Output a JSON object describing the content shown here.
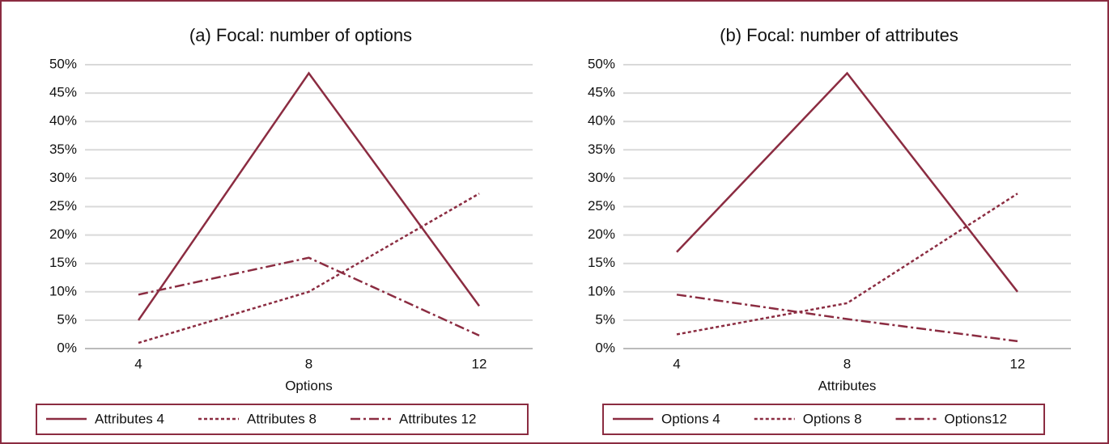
{
  "chart_data": [
    {
      "type": "line",
      "title": "(a) Focal: number of options",
      "x_label": "Options",
      "categories": [
        "4",
        "8",
        "12"
      ],
      "ylim": [
        0,
        50
      ],
      "yticks": [
        {
          "value": 0,
          "label": "0%"
        },
        {
          "value": 5,
          "label": "5%"
        },
        {
          "value": 10,
          "label": "10%"
        },
        {
          "value": 15,
          "label": "15%"
        },
        {
          "value": 20,
          "label": "20%"
        },
        {
          "value": 25,
          "label": "25%"
        },
        {
          "value": 30,
          "label": "30%"
        },
        {
          "value": 35,
          "label": "35%"
        },
        {
          "value": 40,
          "label": "40%"
        },
        {
          "value": 45,
          "label": "45%"
        },
        {
          "value": 50,
          "label": "50%"
        }
      ],
      "grid": true,
      "legend": "bottom",
      "series": [
        {
          "name": "Attributes 4",
          "color": "#8b2c41",
          "dash": "solid",
          "values": [
            5,
            48.5,
            7.5
          ]
        },
        {
          "name": "Attributes 8",
          "color": "#8b2c41",
          "dash": "dashed",
          "values": [
            1,
            10,
            27.3
          ]
        },
        {
          "name": "Attributes 12",
          "color": "#8b2c41",
          "dash": "dashdot",
          "values": [
            9.5,
            16,
            2.3
          ]
        }
      ]
    },
    {
      "type": "line",
      "title": "(b) Focal: number of attributes",
      "x_label": "Attributes",
      "categories": [
        "4",
        "8",
        "12"
      ],
      "ylim": [
        0,
        50
      ],
      "yticks": [
        {
          "value": 0,
          "label": "0%"
        },
        {
          "value": 5,
          "label": "5%"
        },
        {
          "value": 10,
          "label": "10%"
        },
        {
          "value": 15,
          "label": "15%"
        },
        {
          "value": 20,
          "label": "20%"
        },
        {
          "value": 25,
          "label": "25%"
        },
        {
          "value": 30,
          "label": "30%"
        },
        {
          "value": 35,
          "label": "35%"
        },
        {
          "value": 40,
          "label": "40%"
        },
        {
          "value": 45,
          "label": "45%"
        },
        {
          "value": 50,
          "label": "50%"
        }
      ],
      "grid": true,
      "legend": "bottom",
      "series": [
        {
          "name": "Options 4",
          "color": "#8b2c41",
          "dash": "solid",
          "values": [
            17,
            48.5,
            10
          ]
        },
        {
          "name": "Options 8",
          "color": "#8b2c41",
          "dash": "dashed",
          "values": [
            2.5,
            8,
            27.3
          ]
        },
        {
          "name": "Options12",
          "color": "#8b2c41",
          "dash": "dashdot",
          "values": [
            9.5,
            5.2,
            1.3
          ]
        }
      ]
    }
  ]
}
